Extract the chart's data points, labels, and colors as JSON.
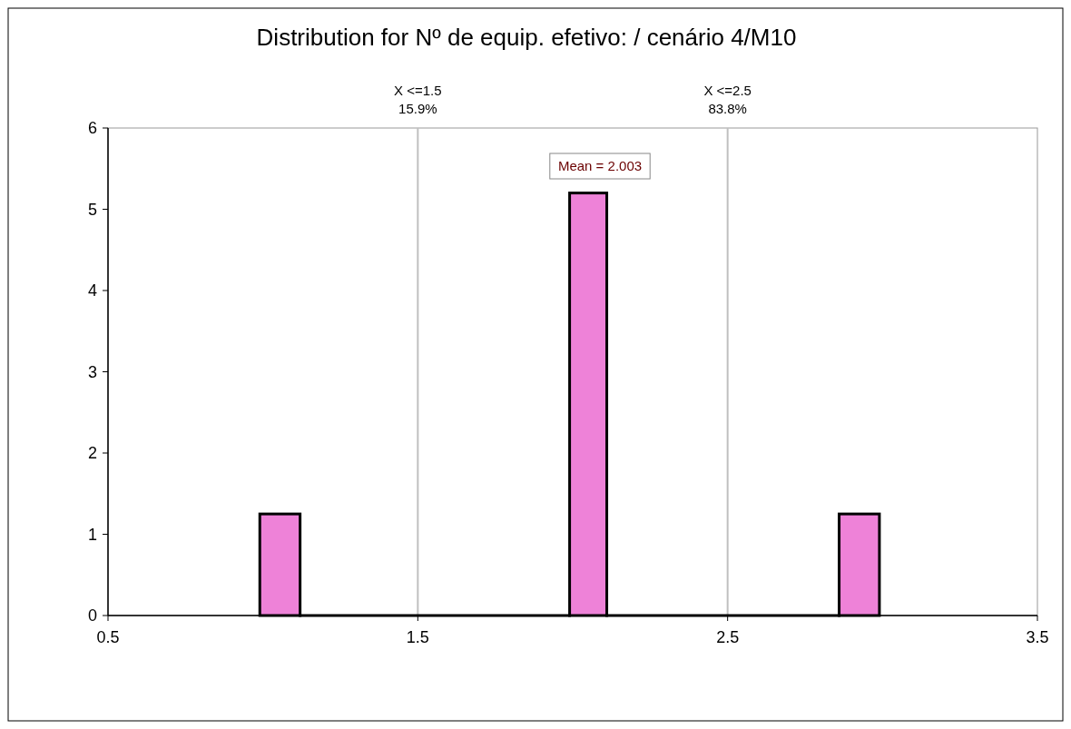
{
  "chart_data": {
    "type": "histogram",
    "title": "Distribution for Nº de equip. efetivo: / cenário 4/M10",
    "bins": [
      0.99,
      1.12,
      1.99,
      2.11,
      2.86,
      2.99
    ],
    "values": [
      1.25,
      0,
      5.2,
      0,
      1.25
    ],
    "color": "#ee82d8",
    "xlim": [
      0.5,
      3.5
    ],
    "xticks": [
      0.5,
      1.5,
      2.5,
      3.5
    ],
    "ylim": [
      0,
      6
    ],
    "yticks": [
      0,
      1,
      2,
      3,
      4,
      5,
      6
    ],
    "ref_lines": [
      {
        "axis": "x",
        "value": 1.5,
        "label": "X <=1.5\n15.9%",
        "color": "#c0c0c0"
      },
      {
        "axis": "x",
        "value": 2.5,
        "label": "X <=2.5\n83.8%",
        "color": "#c0c0c0"
      }
    ],
    "annotations": [
      "Mean = 2.003"
    ],
    "grid": false
  }
}
